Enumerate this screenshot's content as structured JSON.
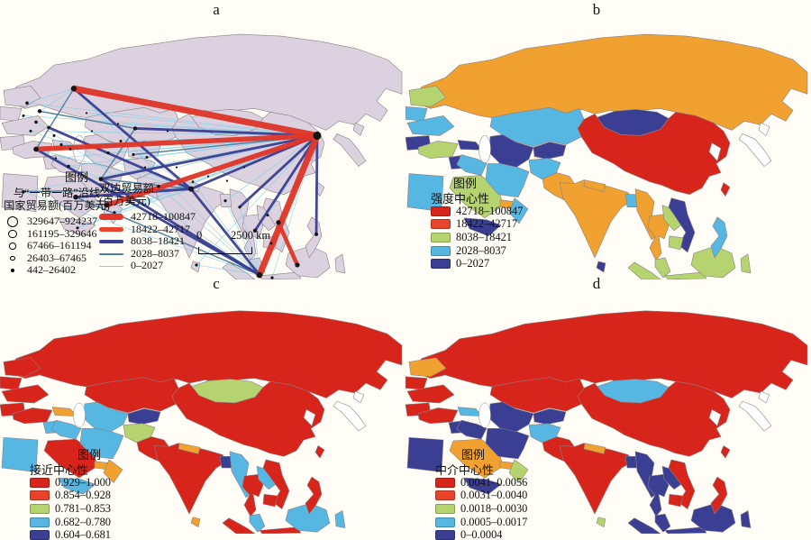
{
  "panels": {
    "a": {
      "label": "a"
    },
    "b": {
      "label": "b"
    },
    "c": {
      "label": "c"
    },
    "d": {
      "label": "d"
    }
  },
  "legend_a": {
    "title": "图例",
    "node_group": {
      "header": [
        "与“一带一路”沿线",
        "国家贸易额(百万美元)"
      ],
      "items": [
        {
          "label": "329647–924237",
          "d": 10
        },
        {
          "label": "161195–329646",
          "d": 7.5
        },
        {
          "label": "67466–161194",
          "d": 5.5
        },
        {
          "label": "26403–67465",
          "d": 3.5
        },
        {
          "label": "442–26402",
          "d": 2
        }
      ]
    },
    "edge_group": {
      "header": [
        "双边贸易额",
        "(百万美元)"
      ],
      "items": [
        {
          "label": "42718–100847",
          "color": "#e03528",
          "h": 7
        },
        {
          "label": "18422–42717",
          "color": "#e8442c",
          "h": 5
        },
        {
          "label": "8038–18421",
          "color": "#3a3f93",
          "h": 4
        },
        {
          "label": "2028–8037",
          "color": "#4d7fa0",
          "h": 2
        },
        {
          "label": "0–2027",
          "color": "#7fd0e8",
          "h": 1.2
        }
      ]
    },
    "scale_bar": {
      "start": "0",
      "end": "2500 km"
    }
  },
  "legend_b": {
    "title": "图例",
    "measure": "强度中心性",
    "items": [
      {
        "label": "42718–100847",
        "color": "#d8251c"
      },
      {
        "label": "18422–42717",
        "color": "#e8442c"
      },
      {
        "label": "8038–18421",
        "color": "#b5d46f"
      },
      {
        "label": "2028–8037",
        "color": "#55b7e2"
      },
      {
        "label": "0–2027",
        "color": "#3a3f93"
      }
    ]
  },
  "legend_c": {
    "title": "图例",
    "measure": "接近中心性",
    "items": [
      {
        "label": "0.929–1.000",
        "color": "#d8251c"
      },
      {
        "label": "0.854–0.928",
        "color": "#e8442c"
      },
      {
        "label": "0.781–0.853",
        "color": "#b5d46f"
      },
      {
        "label": "0.682–0.780",
        "color": "#55b7e2"
      },
      {
        "label": "0.604–0.681",
        "color": "#3a3f93"
      }
    ]
  },
  "legend_d": {
    "title": "图例",
    "measure": "中介中心性",
    "items": [
      {
        "label": "0.0041–0.0056",
        "color": "#d8251c"
      },
      {
        "label": "0.0031–0.0040",
        "color": "#e8442c"
      },
      {
        "label": "0.0018–0.0030",
        "color": "#b5d46f"
      },
      {
        "label": "0.0005–0.0017",
        "color": "#55b7e2"
      },
      {
        "label": "0–0.0004",
        "color": "#3a3f93"
      }
    ]
  },
  "map": {
    "colors": {
      "red": "#d8251c",
      "orange": "#f0a12f",
      "green": "#b5d46f",
      "lightblue": "#55b7e2",
      "navy": "#3a3f93",
      "white": "#ffffff",
      "lavender": "#dcd1df",
      "stroke": "#8b8084",
      "sea": "#fffdf5"
    },
    "fills": {
      "a": {
        "_default": "lavender"
      },
      "b": {
        "_default": "lavender",
        "russia": "orange",
        "northblob": "green",
        "poland": "lightblue",
        "ukraine": "lightblue",
        "romania": "navy",
        "turkey": "green",
        "caucasus": "navy",
        "levant": "navy",
        "iraq": "lightblue",
        "egypt": "lightblue",
        "saudi": "green",
        "uae": "orange",
        "oman": "lightblue",
        "yemen": "navy",
        "kazakhstan": "lightblue",
        "centralasia": "navy",
        "kyrgyztajik": "navy",
        "iran": "lightblue",
        "afghanistan": "lightblue",
        "pakistan": "orange",
        "india": "orange",
        "nepal": "orange",
        "bangladesh": "lightblue",
        "srilanka": "navy",
        "mongolia": "navy",
        "china": "red",
        "myanmar": "orange",
        "thailand": "orange",
        "laos": "green",
        "vietnam": "navy",
        "cambodia": "green",
        "malaysia": "green",
        "sumatra": "green",
        "java": "green",
        "borneo": "green",
        "sulawesi": "green",
        "philippines": "lightblue",
        "taiwan": "red",
        "korea": "white",
        "japan": "white",
        "hokkaido": "white"
      },
      "c": {
        "_default": "lavender",
        "russia": "red",
        "northblob": "red",
        "poland": "red",
        "ukraine": "red",
        "romania": "red",
        "turkey": "red",
        "caucasus": "orange",
        "levant": "lightblue",
        "iraq": "lightblue",
        "egypt": "lightblue",
        "saudi": "red",
        "uae": "orange",
        "oman": "orange",
        "yemen": "lightblue",
        "kazakhstan": "red",
        "centralasia": "lightblue",
        "kyrgyztajik": "navy",
        "iran": "lightblue",
        "afghanistan": "green",
        "pakistan": "red",
        "india": "red",
        "nepal": "orange",
        "bangladesh": "navy",
        "srilanka": "orange",
        "mongolia": "green",
        "china": "red",
        "myanmar": "lightblue",
        "thailand": "red",
        "laos": "lightblue",
        "vietnam": "red",
        "cambodia": "red",
        "malaysia": "lightblue",
        "sumatra": "red",
        "java": "red",
        "borneo": "lightblue",
        "sulawesi": "lightblue",
        "philippines": "red",
        "taiwan": "red",
        "korea": "white",
        "japan": "white",
        "hokkaido": "white"
      },
      "d": {
        "_default": "lavender",
        "russia": "red",
        "northblob": "orange",
        "poland": "red",
        "ukraine": "red",
        "romania": "red",
        "turkey": "red",
        "caucasus": "lightblue",
        "levant": "navy",
        "iraq": "navy",
        "egypt": "navy",
        "saudi": "orange",
        "uae": "orange",
        "oman": "green",
        "yemen": "navy",
        "kazakhstan": "red",
        "centralasia": "navy",
        "kyrgyztajik": "navy",
        "iran": "navy",
        "afghanistan": "lightblue",
        "pakistan": "red",
        "india": "red",
        "nepal": "orange",
        "bangladesh": "navy",
        "srilanka": "green",
        "mongolia": "lightblue",
        "china": "red",
        "myanmar": "navy",
        "thailand": "navy",
        "laos": "navy",
        "vietnam": "red",
        "cambodia": "red",
        "malaysia": "navy",
        "sumatra": "navy",
        "java": "navy",
        "borneo": "navy",
        "sulawesi": "navy",
        "philippines": "red",
        "taiwan": "red",
        "korea": "white",
        "japan": "white",
        "hokkaido": "white"
      }
    }
  },
  "network": {
    "styles": {
      "red": {
        "color": "#e03528",
        "w": 6.5
      },
      "navy": {
        "color": "#3a3f93",
        "w": 2.8
      },
      "teal": {
        "color": "#4d7fa0",
        "w": 1.5
      },
      "cyan": {
        "color": "#7fd0e8",
        "w": 0.7
      }
    },
    "node_color": "#151515",
    "nodes": [
      [
        "hub",
        352,
        126,
        4.5
      ],
      [
        "moscow",
        82,
        74,
        3
      ],
      [
        "e1",
        30,
        90,
        1.8
      ],
      [
        "e2",
        44,
        99,
        2.2
      ],
      [
        "e3",
        26,
        104,
        1.5
      ],
      [
        "e4",
        40,
        111,
        1.8
      ],
      [
        "e5",
        54,
        117,
        1.8
      ],
      [
        "e6",
        34,
        121,
        1.5
      ],
      [
        "e7",
        60,
        126,
        1.5
      ],
      [
        "turkey1",
        40,
        141,
        2.8
      ],
      [
        "cauc1",
        68,
        136,
        1.6
      ],
      [
        "cauc2",
        78,
        141,
        1.4
      ],
      [
        "iraq1",
        76,
        160,
        1.8
      ],
      [
        "egy1",
        26,
        188,
        1.8
      ],
      [
        "saudi1",
        84,
        194,
        2.8
      ],
      [
        "yem1",
        86,
        228,
        1.6
      ],
      [
        "omn1",
        127,
        211,
        1.6
      ],
      [
        "uae1",
        118,
        203,
        2.6
      ],
      [
        "iran1",
        112,
        174,
        2.4
      ],
      [
        "ca1",
        120,
        145,
        1.6
      ],
      [
        "ca2",
        148,
        147,
        1.6
      ],
      [
        "ca3",
        163,
        150,
        1.5
      ],
      [
        "ca4",
        134,
        132,
        1.5
      ],
      [
        "kaz1",
        150,
        118,
        2.2
      ],
      [
        "pak1",
        176,
        182,
        1.8
      ],
      [
        "india1",
        212,
        185,
        3
      ],
      [
        "nep1",
        214,
        177,
        1.4
      ],
      [
        "bang1",
        250,
        198,
        1.6
      ],
      [
        "sri1",
        218,
        269,
        1.6
      ],
      [
        "myan1",
        266,
        205,
        1.6
      ],
      [
        "thai1",
        283,
        231,
        2.2
      ],
      [
        "laos1",
        297,
        214,
        1.5
      ],
      [
        "viet1",
        309,
        222,
        2.6
      ],
      [
        "camb1",
        301,
        245,
        1.5
      ],
      [
        "sing",
        288,
        280,
        3.2
      ],
      [
        "indo1",
        330,
        269,
        2.6
      ],
      [
        "indo2",
        302,
        283,
        1.6
      ],
      [
        "phil1",
        351,
        235,
        2
      ],
      [
        "s1",
        96,
        101,
        1.1
      ],
      [
        "s2",
        131,
        113,
        1.1
      ],
      [
        "s3",
        186,
        121,
        1.1
      ],
      [
        "s4",
        161,
        161,
        1.1
      ],
      [
        "s5",
        196,
        161,
        1.1
      ],
      [
        "s6",
        231,
        171,
        1.1
      ],
      [
        "s7",
        252,
        176,
        1.1
      ],
      [
        "s8",
        271,
        161,
        1.1
      ],
      [
        "s9",
        62,
        151,
        1.1
      ],
      [
        "s10",
        102,
        121,
        1.1
      ]
    ],
    "edges": [
      [
        "hub",
        "e1",
        "cyan"
      ],
      [
        "hub",
        "e3",
        "cyan"
      ],
      [
        "hub",
        "e6",
        "cyan"
      ],
      [
        "hub",
        "cauc1",
        "cyan"
      ],
      [
        "hub",
        "cauc2",
        "cyan"
      ],
      [
        "hub",
        "ca1",
        "cyan"
      ],
      [
        "hub",
        "ca2",
        "cyan"
      ],
      [
        "hub",
        "ca3",
        "cyan"
      ],
      [
        "hub",
        "ca4",
        "cyan"
      ],
      [
        "hub",
        "pak1",
        "cyan"
      ],
      [
        "hub",
        "nep1",
        "cyan"
      ],
      [
        "hub",
        "bang1",
        "cyan"
      ],
      [
        "hub",
        "laos1",
        "cyan"
      ],
      [
        "hub",
        "camb1",
        "cyan"
      ],
      [
        "hub",
        "sri1",
        "cyan"
      ],
      [
        "hub",
        "egy1",
        "cyan"
      ],
      [
        "hub",
        "iraq1",
        "cyan"
      ],
      [
        "hub",
        "omn1",
        "cyan"
      ],
      [
        "hub",
        "yem1",
        "cyan"
      ],
      [
        "hub",
        "indo2",
        "cyan"
      ],
      [
        "hub",
        "s1",
        "cyan"
      ],
      [
        "hub",
        "s2",
        "cyan"
      ],
      [
        "hub",
        "s4",
        "cyan"
      ],
      [
        "hub",
        "s5",
        "cyan"
      ],
      [
        "hub",
        "s9",
        "cyan"
      ],
      [
        "moscow",
        "e1",
        "cyan"
      ],
      [
        "moscow",
        "e2",
        "cyan"
      ],
      [
        "moscow",
        "sing",
        "cyan"
      ],
      [
        "turkey1",
        "india1",
        "cyan"
      ],
      [
        "turkey1",
        "iran1",
        "cyan"
      ],
      [
        "e4",
        "sing",
        "cyan"
      ],
      [
        "e6",
        "india1",
        "cyan"
      ],
      [
        "egy1",
        "sing",
        "cyan"
      ],
      [
        "iraq1",
        "sing",
        "cyan"
      ],
      [
        "yem1",
        "india1",
        "cyan"
      ],
      [
        "omn1",
        "india1",
        "cyan"
      ],
      [
        "sri1",
        "sing",
        "cyan"
      ],
      [
        "bang1",
        "sing",
        "cyan"
      ],
      [
        "myan1",
        "sing",
        "cyan"
      ],
      [
        "thai1",
        "sing",
        "cyan"
      ],
      [
        "ca1",
        "india1",
        "cyan"
      ],
      [
        "ca3",
        "india1",
        "cyan"
      ],
      [
        "pak1",
        "sing",
        "cyan"
      ],
      [
        "nep1",
        "sing",
        "cyan"
      ],
      [
        "moscow",
        "turkey1",
        "teal"
      ],
      [
        "iran1",
        "india1",
        "teal"
      ],
      [
        "kaz1",
        "iran1",
        "teal"
      ],
      [
        "e2",
        "kaz1",
        "teal"
      ],
      [
        "saudi1",
        "sing",
        "teal"
      ],
      [
        "ca2",
        "hub",
        "teal"
      ],
      [
        "egy1",
        "india1",
        "teal"
      ],
      [
        "s8",
        "hub",
        "teal"
      ],
      [
        "hub",
        "iran1",
        "navy"
      ],
      [
        "hub",
        "india1",
        "navy"
      ],
      [
        "hub",
        "kaz1",
        "navy"
      ],
      [
        "hub",
        "thai1",
        "navy"
      ],
      [
        "hub",
        "phil1",
        "navy"
      ],
      [
        "hub",
        "myan1",
        "navy"
      ],
      [
        "moscow",
        "india1",
        "navy"
      ],
      [
        "turkey1",
        "sing",
        "navy"
      ],
      [
        "iran1",
        "sing",
        "navy"
      ],
      [
        "india1",
        "sing",
        "navy"
      ],
      [
        "saudi1",
        "india1",
        "navy"
      ],
      [
        "e5",
        "india1",
        "navy"
      ],
      [
        "hub",
        "moscow",
        "red",
        7
      ],
      [
        "hub",
        "turkey1",
        "red",
        5.5
      ],
      [
        "hub",
        "uae1",
        "red",
        5.5
      ],
      [
        "hub",
        "sing",
        "red",
        7
      ],
      [
        "viet1",
        "indo1",
        "red",
        4.5
      ]
    ]
  }
}
